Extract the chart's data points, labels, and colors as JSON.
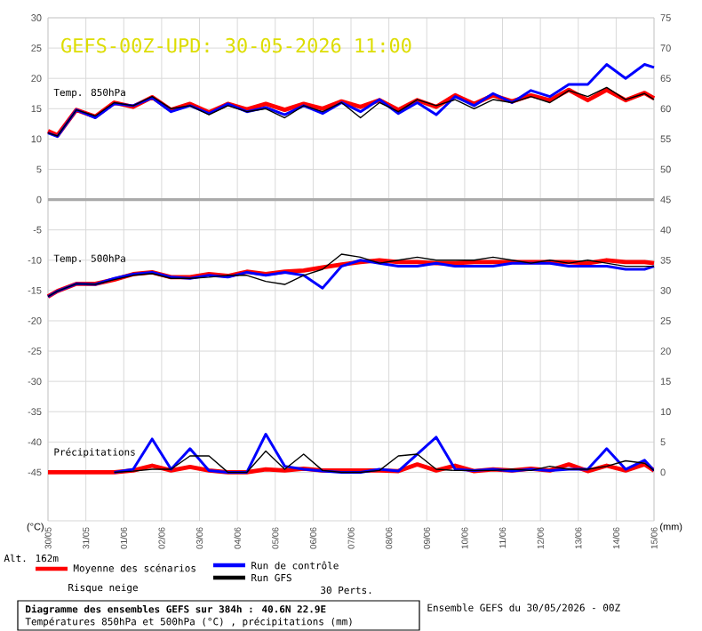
{
  "chart_data": {
    "type": "line",
    "title": "GEFS-00Z-UPD: 30-05-2026 11:00",
    "ylabel": "(°C)",
    "y2label": "(mm)",
    "x": [
      "2026-05-30T00:00",
      "2026-05-30T06:00",
      "2026-05-30T18:00",
      "2026-05-31T06:00",
      "2026-05-31T18:00",
      "2026-06-01T06:00",
      "2026-06-01T18:00",
      "2026-06-02T06:00",
      "2026-06-02T18:00",
      "2026-06-03T06:00",
      "2026-06-03T18:00",
      "2026-06-04T06:00",
      "2026-06-04T18:00",
      "2026-06-05T06:00",
      "2026-06-05T18:00",
      "2026-06-06T06:00",
      "2026-06-06T18:00",
      "2026-06-07T06:00",
      "2026-06-07T18:00",
      "2026-06-08T06:00",
      "2026-06-08T18:00",
      "2026-06-09T06:00",
      "2026-06-09T18:00",
      "2026-06-10T06:00",
      "2026-06-10T18:00",
      "2026-06-11T06:00",
      "2026-06-11T18:00",
      "2026-06-12T06:00",
      "2026-06-12T18:00",
      "2026-06-13T06:00",
      "2026-06-13T18:00",
      "2026-06-14T06:00",
      "2026-06-14T18:00",
      "2026-06-15T00:00"
    ],
    "xlim": [
      "2026-05-30",
      "2026-06-15"
    ],
    "xticks": [
      {
        "value": "2026-05-30",
        "label": "30/05"
      },
      {
        "value": "2026-05-31",
        "label": "31/05"
      },
      {
        "value": "2026-06-01",
        "label": "01/06"
      },
      {
        "value": "2026-06-02",
        "label": "02/06"
      },
      {
        "value": "2026-06-03",
        "label": "03/06"
      },
      {
        "value": "2026-06-04",
        "label": "04/06"
      },
      {
        "value": "2026-06-05",
        "label": "05/06"
      },
      {
        "value": "2026-06-06",
        "label": "06/06"
      },
      {
        "value": "2026-06-07",
        "label": "07/06"
      },
      {
        "value": "2026-06-08",
        "label": "08/06"
      },
      {
        "value": "2026-06-09",
        "label": "09/06"
      },
      {
        "value": "2026-06-10",
        "label": "10/06"
      },
      {
        "value": "2026-06-11",
        "label": "11/06"
      },
      {
        "value": "2026-06-12",
        "label": "12/06"
      },
      {
        "value": "2026-06-13",
        "label": "13/06"
      },
      {
        "value": "2026-06-14",
        "label": "14/06"
      },
      {
        "value": "2026-06-15",
        "label": "15/06"
      }
    ],
    "ylim": [
      -53,
      30
    ],
    "yticks": [
      -45,
      -40,
      -35,
      -30,
      -25,
      -20,
      -15,
      -10,
      -5,
      0,
      5,
      10,
      15,
      20,
      25,
      30
    ],
    "y2lim": [
      -8,
      75
    ],
    "y2ticks": [
      0,
      5,
      10,
      15,
      20,
      25,
      30,
      35,
      40,
      45,
      50,
      55,
      60,
      65,
      70,
      75
    ],
    "grid": true,
    "legend": "bottom",
    "ref_lines": [
      {
        "axis": "y",
        "value": 0,
        "color": "#aaaaaa"
      }
    ],
    "series": [
      {
        "name": "Moyenne des scénarios",
        "color": "#ff0000",
        "values": [
          11.3,
          10.6,
          14.8,
          13.7,
          16,
          15.3,
          16.9,
          14.8,
          15.8,
          14.4,
          15.8,
          14.9,
          15.8,
          14.8,
          15.8,
          15,
          16.2,
          15.3,
          16.4,
          14.8,
          16.4,
          15.3,
          17.2,
          15.8,
          17.2,
          16.2,
          17.2,
          16.4,
          18.1,
          16.4,
          18.1,
          16.4,
          17.6,
          16.7
        ]
      },
      {
        "name": "Run de contrôle",
        "color": "#0000ff",
        "values": [
          11,
          10.4,
          14.8,
          13.5,
          15.8,
          15.5,
          16.8,
          14.5,
          15.5,
          14.2,
          15.8,
          14.5,
          15.2,
          14,
          15.5,
          14.2,
          16,
          14.5,
          16.5,
          14.2,
          16,
          14,
          17,
          15.5,
          17.5,
          16,
          18,
          17,
          19,
          19,
          22.3,
          20,
          22.3,
          21.8
        ]
      },
      {
        "name": "Run GFS",
        "color": "#000000",
        "values": [
          11,
          10.5,
          14.8,
          13.8,
          16,
          15.5,
          17,
          15,
          15.5,
          14,
          15.5,
          14.5,
          15,
          13.5,
          15.5,
          14.5,
          16,
          13.5,
          16,
          14.5,
          16.5,
          15.5,
          16.5,
          15,
          16.5,
          16,
          17,
          16,
          18,
          17,
          18.5,
          16.5,
          17.5,
          16.5
        ]
      },
      {
        "color": "#ff0000",
        "values": [
          -16,
          -15.1,
          -13.9,
          -13.9,
          -13.2,
          -12.3,
          -12,
          -12.8,
          -12.8,
          -12.3,
          -12.6,
          -11.9,
          -12.3,
          -11.9,
          -11.7,
          -11.2,
          -10.7,
          -10.3,
          -10,
          -10.3,
          -10.3,
          -10.5,
          -10.5,
          -10.3,
          -10.3,
          -10.3,
          -10.3,
          -10.3,
          -10.3,
          -10.5,
          -10,
          -10.3,
          -10.3,
          -10.5
        ]
      },
      {
        "color": "#0000ff",
        "values": [
          -16,
          -15.1,
          -13.9,
          -14,
          -13,
          -12.3,
          -12,
          -12.8,
          -13,
          -12.5,
          -12.8,
          -12,
          -12.5,
          -12,
          -12.5,
          -14.6,
          -11,
          -10,
          -10.5,
          -11,
          -11,
          -10.5,
          -11,
          -11,
          -11,
          -10.5,
          -10.5,
          -10.5,
          -11,
          -11,
          -11,
          -11.5,
          -11.5,
          -11
        ]
      },
      {
        "color": "#000000",
        "values": [
          -16,
          -15.1,
          -13.9,
          -14,
          -13.2,
          -12.5,
          -12.2,
          -13,
          -13,
          -12.8,
          -12.5,
          -12.5,
          -13.5,
          -14,
          -12.5,
          -11.5,
          -9,
          -9.5,
          -10.5,
          -10,
          -9.5,
          -10,
          -10,
          -10,
          -9.5,
          -10,
          -10.5,
          -10,
          -10.5,
          -10,
          -10.5,
          -11,
          -11,
          -11
        ]
      },
      {
        "color": "#ff0000",
        "axis": "y2",
        "values": [
          0,
          0,
          0,
          0,
          0,
          0.3,
          1.1,
          0.3,
          0.9,
          0.3,
          0,
          0,
          0.5,
          0.3,
          0.6,
          0.3,
          0.3,
          0.3,
          0.3,
          0.2,
          1.3,
          0.3,
          1.1,
          0.2,
          0.5,
          0.3,
          0.6,
          0.3,
          1.3,
          0.2,
          1.1,
          0.3,
          1.3,
          0.3
        ]
      },
      {
        "color": "#0000ff",
        "axis": "y2",
        "values": [
          null,
          null,
          null,
          null,
          0,
          0.5,
          5.5,
          0.5,
          3.9,
          0.3,
          0,
          0,
          6.3,
          1,
          0.5,
          0.2,
          0,
          0,
          0.5,
          0.2,
          3,
          5.8,
          0.5,
          0.3,
          0.5,
          0.2,
          0.5,
          0.3,
          0.5,
          0.5,
          3.9,
          0.5,
          2,
          0.3
        ]
      },
      {
        "color": "#000000",
        "axis": "y2",
        "values": [
          null,
          null,
          null,
          null,
          0,
          0.2,
          0.5,
          0.5,
          2.7,
          2.7,
          0,
          0,
          3.5,
          0.5,
          3,
          0.3,
          0,
          0,
          0.3,
          2.7,
          3,
          0.5,
          0.3,
          0.3,
          0.3,
          0.5,
          0.3,
          1,
          0.5,
          0.5,
          1,
          1.9,
          1.5,
          0.3
        ]
      }
    ],
    "annotations": [
      "Temp. 850hPa",
      "Temp. 500hPa",
      "Précipitations",
      "Alt. 162m",
      "Risque neige",
      "30 Perts.",
      "Diagramme des ensembles GEFS sur 384h : 40.6N 22.9E",
      "Températures 850hPa et 500hPa (°C) , précipitations (mm)",
      "Ensemble GEFS du 30/05/2026 - 00Z"
    ]
  }
}
